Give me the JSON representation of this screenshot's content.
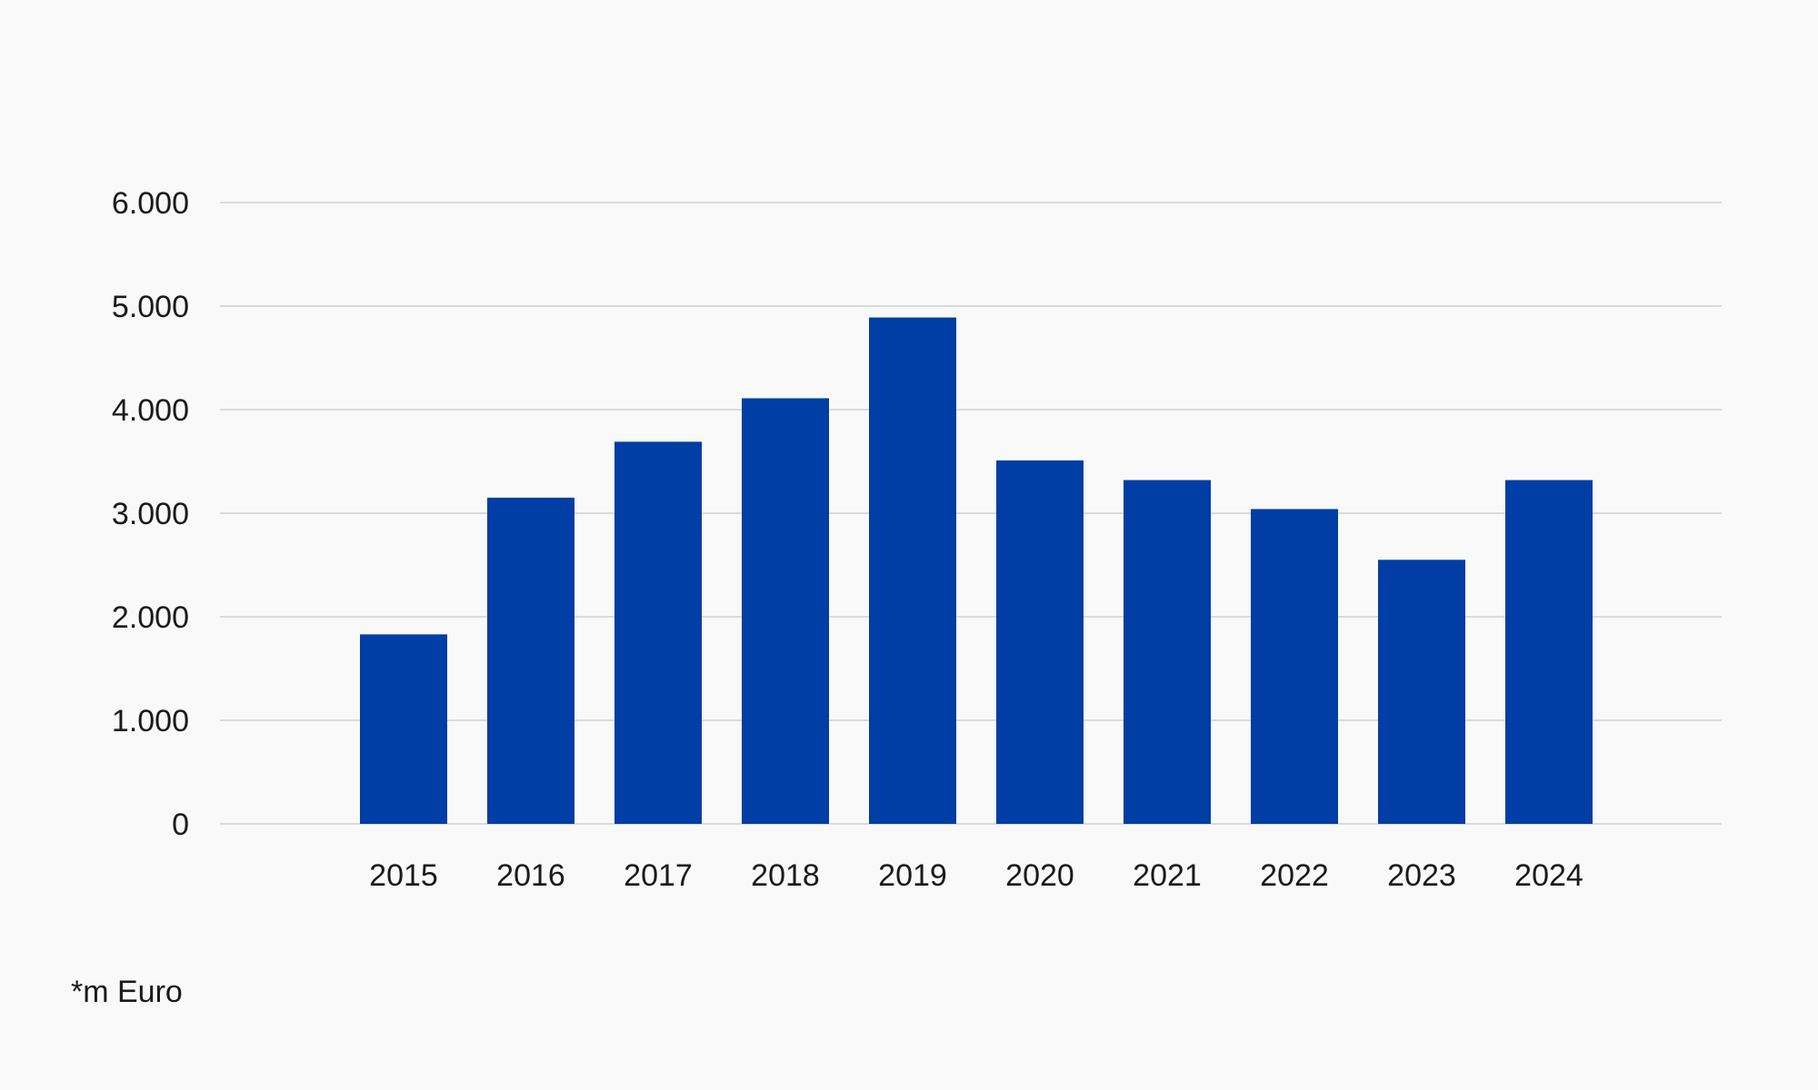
{
  "chart_data": {
    "type": "bar",
    "categories": [
      "2015",
      "2016",
      "2017",
      "2018",
      "2019",
      "2020",
      "2021",
      "2022",
      "2023",
      "2024"
    ],
    "values": [
      1830,
      3150,
      3690,
      4110,
      4890,
      3510,
      3320,
      3040,
      2550,
      3320
    ],
    "title": "",
    "xlabel": "",
    "ylabel": "",
    "ylim": [
      0,
      6000
    ],
    "yticks": [
      0,
      1000,
      2000,
      3000,
      4000,
      5000,
      6000
    ],
    "ytick_labels": [
      "0",
      "1.000",
      "2.000",
      "3.000",
      "4.000",
      "5.000",
      "6.000"
    ],
    "grid": true,
    "bar_color": "#003da5",
    "grid_color": "#cfcfcf",
    "note": "*m Euro"
  }
}
